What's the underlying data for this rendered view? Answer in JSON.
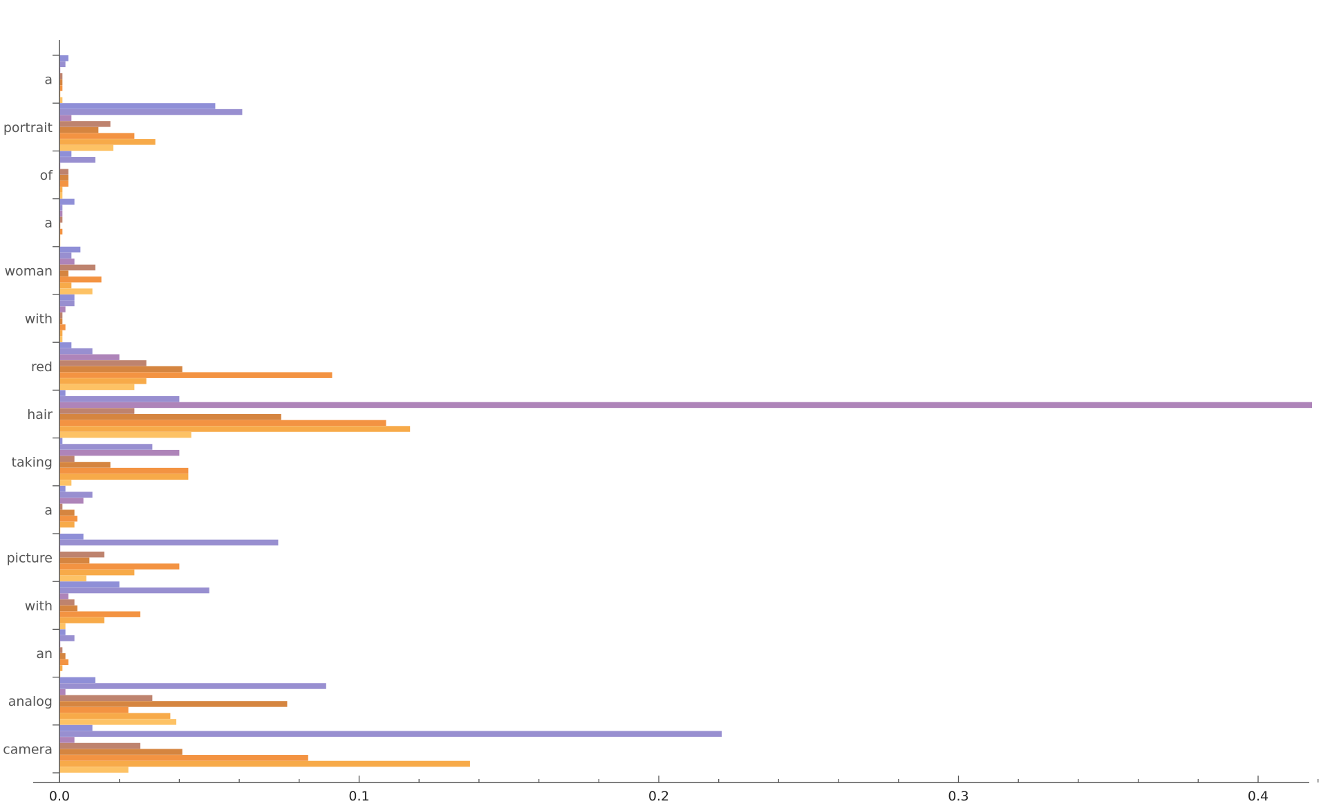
{
  "chart_data": {
    "type": "bar",
    "orientation": "horizontal",
    "categories": [
      "a",
      "portrait",
      "of",
      "a",
      "woman",
      "with",
      "red",
      "hair",
      "taking",
      "a",
      "picture",
      "with",
      "an",
      "analog",
      "camera"
    ],
    "series": [
      {
        "color": "#8585d4",
        "values": [
          0.003,
          0.052,
          0.004,
          0.005,
          0.007,
          0.005,
          0.004,
          0.002,
          0.001,
          0.002,
          0.008,
          0.02,
          0.002,
          0.012,
          0.011
        ]
      },
      {
        "color": "#8f86cc",
        "values": [
          0.002,
          0.061,
          0.012,
          0.001,
          0.004,
          0.005,
          0.011,
          0.04,
          0.031,
          0.011,
          0.073,
          0.05,
          0.005,
          0.089,
          0.221
        ]
      },
      {
        "color": "#a77ab3",
        "values": [
          0.0,
          0.004,
          0.0,
          0.001,
          0.005,
          0.002,
          0.02,
          0.418,
          0.04,
          0.008,
          0.0,
          0.003,
          0.0,
          0.002,
          0.005
        ]
      },
      {
        "color": "#b97862",
        "values": [
          0.001,
          0.017,
          0.003,
          0.001,
          0.012,
          0.001,
          0.029,
          0.025,
          0.005,
          0.001,
          0.015,
          0.005,
          0.001,
          0.031,
          0.027
        ]
      },
      {
        "color": "#d17b30",
        "values": [
          0.001,
          0.013,
          0.003,
          0.0,
          0.003,
          0.001,
          0.041,
          0.074,
          0.017,
          0.005,
          0.01,
          0.006,
          0.002,
          0.076,
          0.041
        ]
      },
      {
        "color": "#f28a32",
        "values": [
          0.001,
          0.025,
          0.003,
          0.001,
          0.014,
          0.002,
          0.091,
          0.109,
          0.043,
          0.006,
          0.04,
          0.027,
          0.003,
          0.023,
          0.083
        ]
      },
      {
        "color": "#f6a33a",
        "values": [
          0.0,
          0.032,
          0.001,
          0.0,
          0.004,
          0.001,
          0.029,
          0.117,
          0.043,
          0.005,
          0.025,
          0.015,
          0.001,
          0.037,
          0.137
        ]
      },
      {
        "color": "#fdbd58",
        "values": [
          0.001,
          0.018,
          0.001,
          0.0,
          0.011,
          0.001,
          0.025,
          0.044,
          0.004,
          0.0,
          0.009,
          0.002,
          0.0,
          0.039,
          0.023
        ]
      }
    ],
    "xlim": [
      0,
      0.42
    ],
    "x_ticks": [
      0.0,
      0.1,
      0.2,
      0.3,
      0.4
    ],
    "x_tick_labels": [
      "0.0",
      "0.1",
      "0.2",
      "0.3",
      "0.4"
    ],
    "x_minor_step": 0.02,
    "grid": false,
    "legend": "none"
  }
}
